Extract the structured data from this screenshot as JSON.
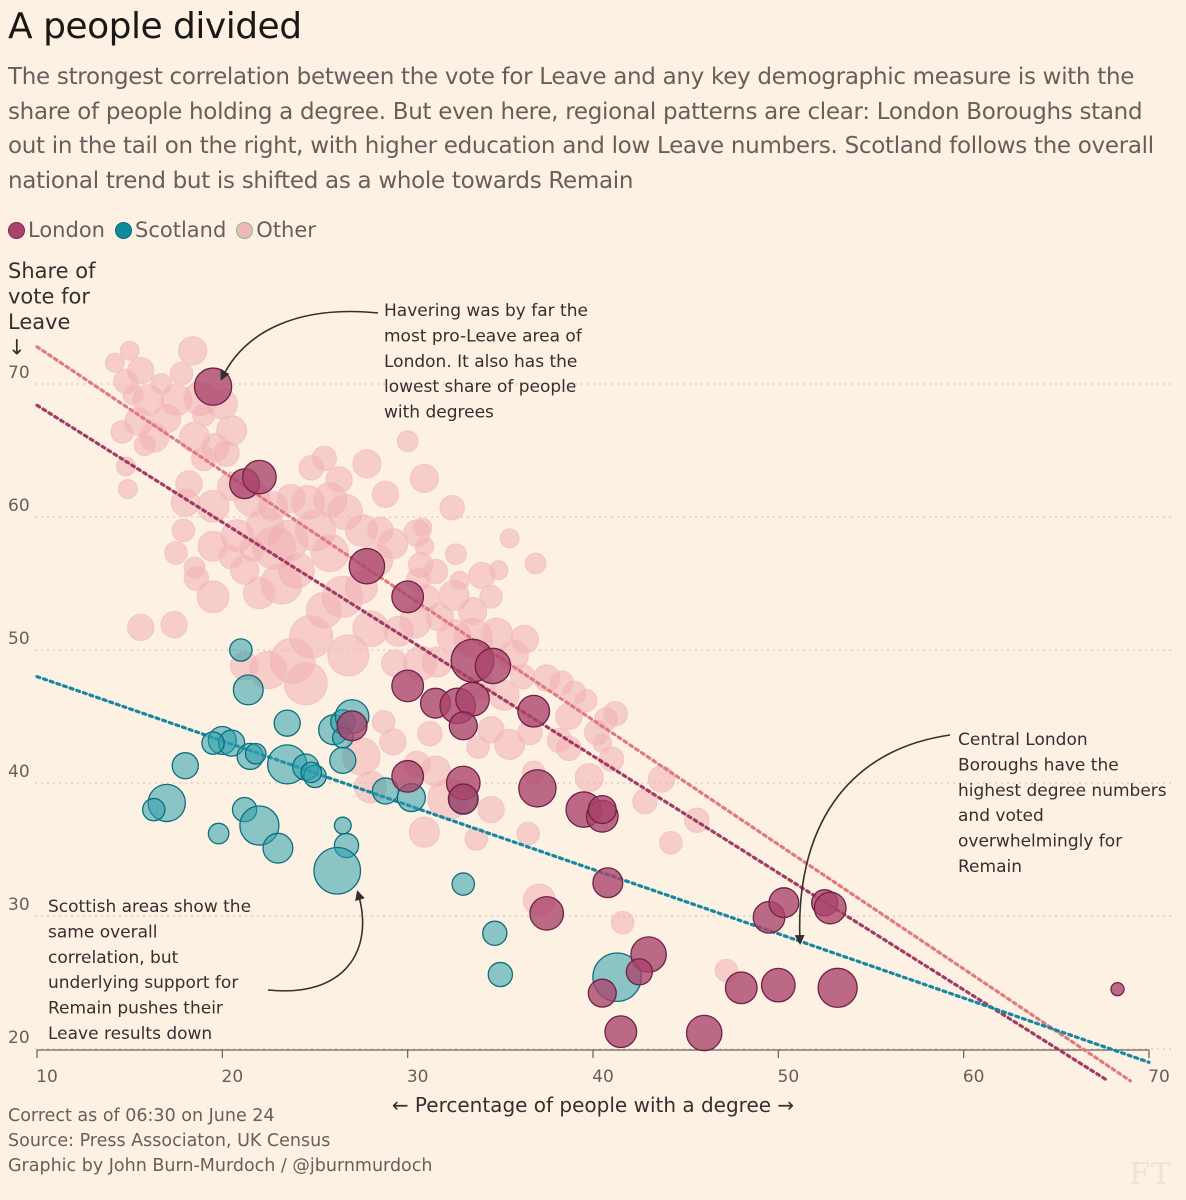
{
  "title": "A people divided",
  "subtitle": "The strongest correlation between the vote for Leave and any key demographic measure is with the share of people holding a degree. But even here, regional patterns are clear: London Boroughs stand out in the tail on the right, with higher education and low Leave numbers. Scotland follows the overall national trend but is shifted as a whole towards Remain",
  "legend": [
    {
      "label": "London",
      "color": "#a9436b"
    },
    {
      "label": "Scotland",
      "color": "#0d8a9b"
    },
    {
      "label": "Other",
      "color": "#f0b8bb"
    }
  ],
  "footer": {
    "line1": "Correct as of 06:30 on June 24",
    "line2": "Source: Press Associaton, UK Census",
    "line3": "Graphic by John Burn-Murdoch / @jburnmurdoch",
    "logo": "FT"
  },
  "annotations": {
    "havering": [
      "Havering was by far the",
      "most pro-Leave area of",
      "London. It also has the",
      "lowest share of people",
      "with degrees"
    ],
    "central": [
      "Central London",
      "Boroughs have the",
      "highest degree numbers",
      "and voted",
      "overwhelmingly for",
      "Remain"
    ],
    "scottish": [
      "Scottish areas show the",
      "same overall",
      "correlation, but",
      "underlying support for",
      "Remain pushes their",
      "Leave results down"
    ]
  },
  "chart_data": {
    "type": "scatter",
    "title": "A people divided",
    "xlabel": "← Percentage of people with a degree →",
    "ylabel": [
      "Share of",
      "vote for",
      "Leave",
      "↓"
    ],
    "xlim": [
      10,
      70
    ],
    "ylim": [
      20,
      70
    ],
    "xticks": [
      10,
      20,
      30,
      40,
      50,
      60,
      70
    ],
    "yticks": [
      20,
      30,
      40,
      50,
      60,
      70
    ],
    "grid": "horizontal dotted",
    "legend_position": "top-left",
    "series": [
      {
        "name": "London",
        "color": "#a9436b",
        "points": [
          [
            19.5,
            69.8,
            2.0
          ],
          [
            21.2,
            62.5,
            1.6
          ],
          [
            22.0,
            63.0,
            1.8
          ],
          [
            27.8,
            56.3,
            1.9
          ],
          [
            30.0,
            54.0,
            1.7
          ],
          [
            33.5,
            49.2,
            2.3
          ],
          [
            34.6,
            48.8,
            1.9
          ],
          [
            30.0,
            47.3,
            1.7
          ],
          [
            31.5,
            46.0,
            1.6
          ],
          [
            32.7,
            45.8,
            1.9
          ],
          [
            33.5,
            46.3,
            1.8
          ],
          [
            36.8,
            45.4,
            1.7
          ],
          [
            33.0,
            44.3,
            1.5
          ],
          [
            27.0,
            44.3,
            1.6
          ],
          [
            30.0,
            40.5,
            1.7
          ],
          [
            33.0,
            40.0,
            1.8
          ],
          [
            33.0,
            38.8,
            1.6
          ],
          [
            37.0,
            39.6,
            2.0
          ],
          [
            39.5,
            38.0,
            1.9
          ],
          [
            40.5,
            37.5,
            1.7
          ],
          [
            40.5,
            38.0,
            1.5
          ],
          [
            40.8,
            32.5,
            1.6
          ],
          [
            37.5,
            30.2,
            1.8
          ],
          [
            43.0,
            27.1,
            1.9
          ],
          [
            42.5,
            25.8,
            1.4
          ],
          [
            40.5,
            24.2,
            1.5
          ],
          [
            41.5,
            21.3,
            1.7
          ],
          [
            46.0,
            21.2,
            1.9
          ],
          [
            48.0,
            24.6,
            1.7
          ],
          [
            49.5,
            29.9,
            1.7
          ],
          [
            50.3,
            31.0,
            1.6
          ],
          [
            50.0,
            24.8,
            1.8
          ],
          [
            52.5,
            31.0,
            1.4
          ],
          [
            52.8,
            30.6,
            1.7
          ],
          [
            53.2,
            24.6,
            2.1
          ],
          [
            68.3,
            24.5,
            0.7
          ]
        ]
      },
      {
        "name": "Scotland",
        "color": "#0d8a9b",
        "points": [
          [
            21.0,
            50.0,
            1.2
          ],
          [
            21.4,
            47.0,
            1.6
          ],
          [
            20.0,
            43.2,
            1.5
          ],
          [
            20.5,
            43.0,
            1.4
          ],
          [
            19.5,
            43.0,
            1.2
          ],
          [
            21.5,
            42.0,
            1.4
          ],
          [
            21.8,
            42.2,
            1.1
          ],
          [
            23.5,
            41.4,
            2.1
          ],
          [
            24.5,
            41.2,
            1.4
          ],
          [
            23.5,
            44.5,
            1.4
          ],
          [
            26.0,
            44.0,
            1.6
          ],
          [
            26.5,
            44.6,
            1.3
          ],
          [
            27.0,
            45.0,
            1.8
          ],
          [
            26.5,
            43.4,
            1.1
          ],
          [
            26.5,
            41.7,
            1.4
          ],
          [
            25.0,
            40.5,
            1.2
          ],
          [
            24.8,
            40.8,
            1.1
          ],
          [
            18.0,
            41.3,
            1.4
          ],
          [
            17.0,
            38.5,
            2.0
          ],
          [
            16.3,
            38.0,
            1.2
          ],
          [
            19.8,
            36.2,
            1.1
          ],
          [
            21.2,
            38.0,
            1.3
          ],
          [
            22.0,
            36.8,
            2.1
          ],
          [
            23.0,
            35.1,
            1.6
          ],
          [
            26.5,
            36.8,
            0.9
          ],
          [
            26.7,
            35.3,
            1.3
          ],
          [
            26.2,
            33.4,
            2.5
          ],
          [
            28.8,
            39.4,
            1.4
          ],
          [
            30.2,
            38.9,
            1.5
          ],
          [
            33.0,
            38.7,
            1.5
          ],
          [
            33.0,
            32.4,
            1.2
          ],
          [
            34.7,
            28.7,
            1.3
          ],
          [
            35.0,
            25.6,
            1.3
          ],
          [
            41.3,
            25.4,
            2.6
          ]
        ]
      },
      {
        "name": "Other",
        "color": "#f0b8bb",
        "points": [
          [
            15.0,
            72.5,
            1.0
          ],
          [
            15.6,
            71.0,
            1.4
          ],
          [
            14.2,
            71.6,
            1.0
          ],
          [
            16.0,
            68.8,
            1.6
          ],
          [
            14.8,
            70.2,
            1.3
          ],
          [
            15.2,
            69.2,
            1.1
          ],
          [
            16.7,
            70.0,
            1.1
          ],
          [
            15.5,
            67.2,
            1.5
          ],
          [
            14.6,
            66.4,
            1.2
          ],
          [
            17.0,
            67.4,
            1.5
          ],
          [
            15.8,
            65.4,
            1.1
          ],
          [
            16.3,
            66.0,
            1.6
          ],
          [
            17.5,
            68.8,
            1.7
          ],
          [
            17.8,
            70.8,
            1.2
          ],
          [
            18.4,
            72.5,
            1.5
          ],
          [
            18.8,
            68.9,
            1.8
          ],
          [
            18.5,
            66.0,
            1.6
          ],
          [
            19.0,
            64.4,
            1.3
          ],
          [
            20.0,
            68.5,
            1.6
          ],
          [
            19.6,
            65.2,
            1.5
          ],
          [
            20.5,
            66.5,
            1.6
          ],
          [
            20.2,
            64.8,
            1.4
          ],
          [
            19.0,
            67.7,
            1.2
          ],
          [
            14.8,
            63.8,
            1.0
          ],
          [
            14.9,
            62.1,
            1.0
          ],
          [
            18.2,
            62.5,
            1.4
          ],
          [
            18.0,
            61.1,
            1.5
          ],
          [
            19.5,
            60.8,
            1.7
          ],
          [
            20.5,
            62.3,
            1.5
          ],
          [
            21.6,
            61.4,
            1.9
          ],
          [
            20.8,
            58.6,
            1.7
          ],
          [
            21.2,
            56.0,
            1.5
          ],
          [
            20.5,
            57.0,
            1.3
          ],
          [
            22.3,
            59.3,
            2.0
          ],
          [
            22.8,
            57.7,
            2.3
          ],
          [
            23.5,
            58.2,
            2.2
          ],
          [
            22.7,
            60.8,
            1.6
          ],
          [
            23.7,
            61.4,
            1.5
          ],
          [
            24.6,
            61.1,
            1.8
          ],
          [
            25.0,
            59.0,
            2.2
          ],
          [
            25.8,
            61.3,
            1.8
          ],
          [
            26.6,
            60.4,
            1.9
          ],
          [
            25.8,
            57.3,
            2.0
          ],
          [
            24.0,
            56.0,
            1.9
          ],
          [
            23.2,
            55.0,
            2.2
          ],
          [
            22.0,
            54.3,
            1.7
          ],
          [
            21.6,
            57.6,
            1.4
          ],
          [
            19.5,
            57.8,
            1.6
          ],
          [
            17.5,
            57.3,
            1.2
          ],
          [
            18.5,
            56.2,
            1.1
          ],
          [
            19.5,
            54.0,
            1.7
          ],
          [
            24.8,
            63.7,
            1.3
          ],
          [
            25.5,
            64.4,
            1.3
          ],
          [
            26.3,
            62.8,
            1.4
          ],
          [
            27.5,
            59.0,
            1.7
          ],
          [
            28.5,
            59.0,
            1.4
          ],
          [
            29.2,
            58.0,
            1.6
          ],
          [
            28.3,
            56.8,
            1.8
          ],
          [
            27.5,
            54.7,
            1.7
          ],
          [
            26.5,
            54.0,
            2.2
          ],
          [
            25.5,
            53.0,
            1.9
          ],
          [
            24.8,
            51.0,
            2.3
          ],
          [
            23.8,
            49.2,
            2.4
          ],
          [
            22.5,
            48.5,
            2.0
          ],
          [
            21.2,
            48.8,
            1.5
          ],
          [
            24.5,
            47.5,
            2.3
          ],
          [
            26.8,
            49.6,
            2.2
          ],
          [
            28.0,
            51.6,
            1.9
          ],
          [
            29.5,
            51.4,
            1.6
          ],
          [
            30.4,
            52.1,
            1.7
          ],
          [
            31.0,
            53.9,
            1.4
          ],
          [
            30.7,
            56.4,
            1.3
          ],
          [
            31.5,
            55.9,
            1.3
          ],
          [
            32.5,
            54.1,
            1.6
          ],
          [
            31.7,
            52.5,
            1.5
          ],
          [
            32.5,
            51.0,
            1.8
          ],
          [
            33.5,
            50.9,
            2.1
          ],
          [
            34.8,
            51.2,
            1.7
          ],
          [
            35.7,
            49.6,
            1.6
          ],
          [
            36.3,
            50.8,
            1.5
          ],
          [
            36.2,
            48.0,
            1.3
          ],
          [
            35.2,
            46.6,
            1.6
          ],
          [
            34.0,
            47.2,
            1.4
          ],
          [
            31.6,
            49.1,
            1.6
          ],
          [
            30.7,
            49.0,
            1.8
          ],
          [
            29.3,
            49.0,
            1.4
          ],
          [
            30.5,
            58.8,
            1.4
          ],
          [
            30.8,
            59.2,
            1.0
          ],
          [
            30.9,
            57.8,
            1.0
          ],
          [
            30.6,
            55.3,
            1.3
          ],
          [
            33.5,
            52.9,
            1.5
          ],
          [
            34.5,
            54.0,
            1.2
          ],
          [
            34.0,
            55.6,
            1.4
          ],
          [
            32.6,
            57.2,
            1.1
          ],
          [
            36.9,
            56.5,
            1.1
          ],
          [
            32.8,
            55.2,
            1.0
          ],
          [
            37.5,
            47.9,
            1.4
          ],
          [
            36.6,
            43.8,
            1.3
          ],
          [
            38.7,
            45.0,
            1.4
          ],
          [
            39.0,
            46.8,
            1.2
          ],
          [
            38.3,
            47.5,
            1.3
          ],
          [
            39.6,
            46.2,
            1.2
          ],
          [
            40.2,
            43.8,
            1.3
          ],
          [
            38.7,
            42.6,
            1.3
          ],
          [
            39.8,
            40.4,
            1.5
          ],
          [
            40.7,
            44.8,
            1.2
          ],
          [
            41.0,
            41.8,
            1.3
          ],
          [
            41.2,
            45.2,
            1.3
          ],
          [
            40.5,
            43.0,
            1.0
          ],
          [
            38.2,
            43.2,
            1.3
          ],
          [
            36.8,
            40.8,
            1.2
          ],
          [
            35.5,
            42.9,
            1.6
          ],
          [
            34.5,
            44.0,
            1.4
          ],
          [
            33.8,
            42.7,
            1.2
          ],
          [
            31.2,
            43.7,
            1.3
          ],
          [
            28.7,
            44.6,
            1.2
          ],
          [
            29.2,
            43.1,
            1.4
          ],
          [
            27.5,
            42.0,
            2.0
          ],
          [
            28.0,
            39.7,
            1.7
          ],
          [
            30.5,
            41.4,
            1.4
          ],
          [
            31.5,
            40.9,
            1.6
          ],
          [
            32.2,
            38.8,
            2.2
          ],
          [
            30.9,
            36.3,
            1.6
          ],
          [
            34.5,
            38.0,
            1.4
          ],
          [
            33.7,
            35.8,
            1.2
          ],
          [
            36.5,
            36.2,
            1.2
          ],
          [
            37.1,
            31.2,
            1.7
          ],
          [
            41.6,
            29.5,
            1.2
          ],
          [
            43.7,
            40.3,
            1.4
          ],
          [
            42.8,
            38.6,
            1.3
          ],
          [
            45.6,
            37.2,
            1.3
          ],
          [
            47.2,
            25.9,
            1.2
          ],
          [
            44.2,
            35.5,
            1.2
          ],
          [
            17.4,
            51.9,
            1.4
          ],
          [
            15.6,
            51.7,
            1.4
          ],
          [
            18.6,
            55.4,
            1.3
          ],
          [
            17.9,
            59.0,
            1.2
          ],
          [
            35.5,
            58.4,
            1.0
          ],
          [
            34.9,
            56.0,
            1.0
          ],
          [
            28.8,
            61.7,
            1.4
          ],
          [
            30.9,
            62.9,
            1.5
          ],
          [
            32.4,
            60.7,
            1.3
          ],
          [
            30.0,
            65.7,
            1.1
          ],
          [
            27.8,
            64.0,
            1.5
          ]
        ]
      }
    ],
    "trend_lines": [
      {
        "name": "Other trend",
        "color": "#e07b7d",
        "from": [
          10,
          72.8
        ],
        "to": [
          69,
          17.6
        ]
      },
      {
        "name": "London trend",
        "color": "#a23c64",
        "from": [
          10,
          68.4
        ],
        "to": [
          67.8,
          17.6
        ]
      },
      {
        "name": "Scotland trend",
        "color": "#1787a2",
        "from": [
          10,
          48.0
        ],
        "to": [
          70,
          19.0
        ]
      }
    ],
    "size_note": "bubble area scaled by population"
  }
}
